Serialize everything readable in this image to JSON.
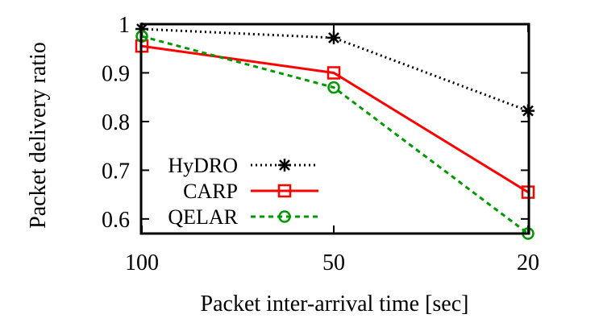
{
  "chart_data": {
    "type": "line",
    "title": "",
    "xlabel": "Packet inter-arrival time [sec]",
    "ylabel": "Packet delivery ratio",
    "categories": [
      "100",
      "50",
      "20"
    ],
    "ylim": [
      0.57,
      1.0
    ],
    "yticks": [
      0.6,
      0.7,
      0.8,
      0.9,
      1
    ],
    "ytick_labels": [
      "0.6",
      "0.7",
      "0.8",
      "0.9",
      "1"
    ],
    "grid": false,
    "legend_position": "left",
    "series": [
      {
        "name": "HyDRO",
        "values": [
          0.99,
          0.972,
          0.822
        ],
        "color": "#000000",
        "marker": "asterisk",
        "line_style": "dotted"
      },
      {
        "name": "CARP",
        "values": [
          0.955,
          0.9,
          0.655
        ],
        "color": "#ff0000",
        "marker": "square",
        "line_style": "solid"
      },
      {
        "name": "QELAR",
        "values": [
          0.975,
          0.87,
          0.57
        ],
        "color": "#009900",
        "marker": "circle",
        "line_style": "dashed"
      }
    ]
  }
}
